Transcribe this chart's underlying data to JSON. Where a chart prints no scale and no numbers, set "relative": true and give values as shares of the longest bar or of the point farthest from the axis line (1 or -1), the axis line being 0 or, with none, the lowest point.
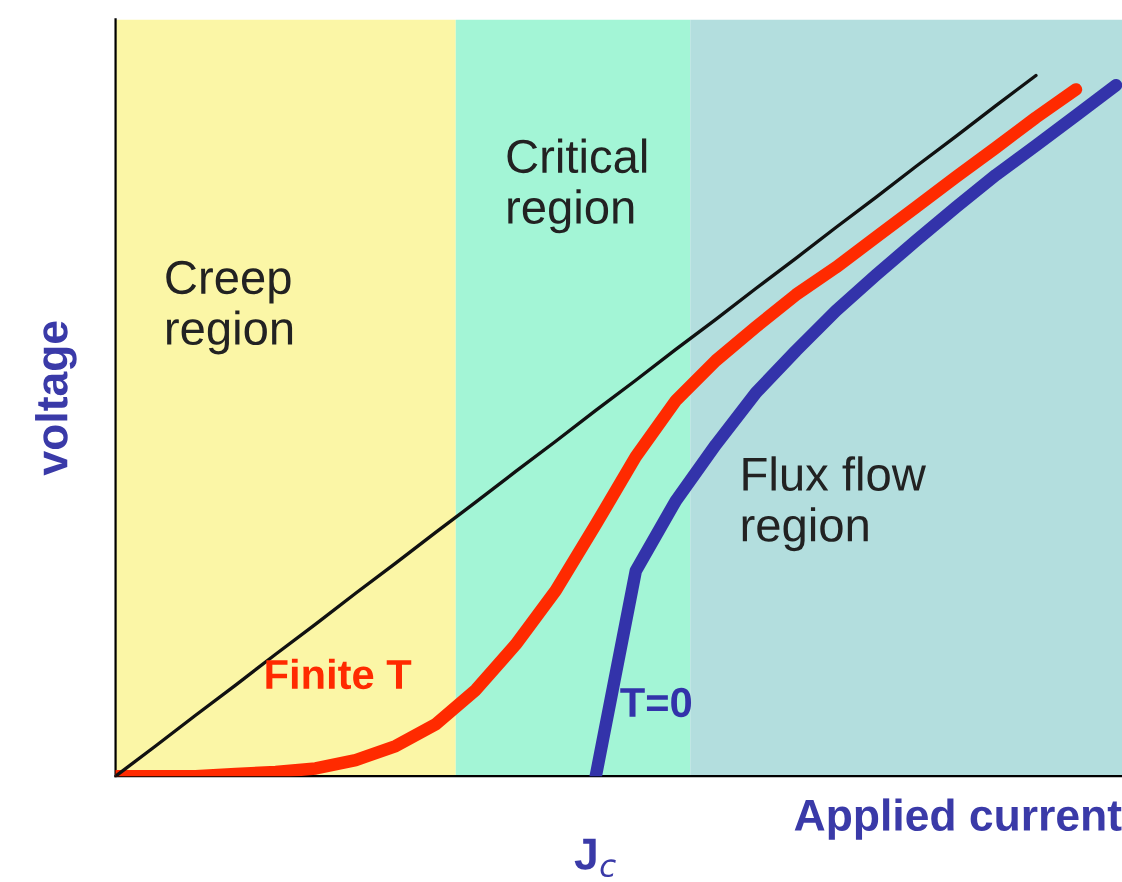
{
  "chart_data": {
    "type": "line",
    "relative": true,
    "xlabel": "Applied current",
    "ylabel": "voltage",
    "categories": [
      null,
      null,
      null,
      null,
      null,
      null,
      null,
      null,
      null,
      null,
      null,
      null,
      null,
      null,
      null,
      null,
      null,
      null,
      null,
      null,
      null,
      null,
      null,
      null,
      null,
      null
    ],
    "series": [
      {
        "color": "#111111",
        "values": [
          0,
          0.043,
          0.087,
          0.13,
          0.174,
          0.217,
          0.261,
          0.304,
          0.348,
          0.391,
          0.435,
          0.478,
          0.522,
          0.565,
          0.609,
          0.652,
          0.696,
          0.739,
          0.783,
          0.826,
          0.87,
          0.913,
          0.957,
          1.0,
          null,
          null
        ]
      },
      {
        "name": "Finite T",
        "color": "#ff2a00",
        "values": [
          0,
          0,
          0,
          0.003,
          0.006,
          0.011,
          0.023,
          0.043,
          0.074,
          0.123,
          0.188,
          0.265,
          0.359,
          0.456,
          0.536,
          0.593,
          0.641,
          0.687,
          0.726,
          0.769,
          0.812,
          0.855,
          0.897,
          0.94,
          0.98,
          null
        ]
      },
      {
        "name": "T=0",
        "color": "#3333aa",
        "values": [
          null,
          null,
          null,
          null,
          null,
          null,
          null,
          null,
          null,
          null,
          null,
          null,
          0,
          0.293,
          0.393,
          0.473,
          0.547,
          0.607,
          0.664,
          0.715,
          0.764,
          0.812,
          0.858,
          0.9,
          0.943,
          0.986
        ]
      }
    ],
    "annotations": [
      "Creep\nregion",
      "Critical\nregion",
      "Flux flow\nregion",
      "J$_{c}$"
    ],
    "legend": false
  }
}
